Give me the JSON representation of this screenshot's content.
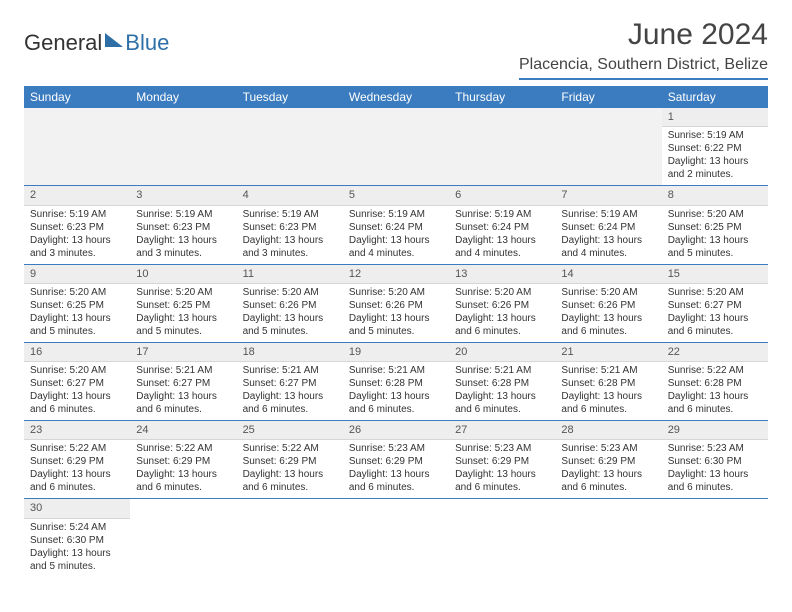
{
  "brand": {
    "part1": "General",
    "part2": "Blue"
  },
  "title": "June 2024",
  "location": "Placencia, Southern District, Belize",
  "colors": {
    "header_bg": "#3b7bbf",
    "header_text": "#ffffff",
    "daynum_bg": "#eeeeee",
    "row_border": "#3b7bbf",
    "body_text": "#333333",
    "brand_blue": "#2f6fa8"
  },
  "week_header": [
    "Sunday",
    "Monday",
    "Tuesday",
    "Wednesday",
    "Thursday",
    "Friday",
    "Saturday"
  ],
  "weeks": [
    [
      null,
      null,
      null,
      null,
      null,
      null,
      {
        "n": "1",
        "sr": "Sunrise: 5:19 AM",
        "ss": "Sunset: 6:22 PM",
        "d1": "Daylight: 13 hours",
        "d2": "and 2 minutes."
      }
    ],
    [
      {
        "n": "2",
        "sr": "Sunrise: 5:19 AM",
        "ss": "Sunset: 6:23 PM",
        "d1": "Daylight: 13 hours",
        "d2": "and 3 minutes."
      },
      {
        "n": "3",
        "sr": "Sunrise: 5:19 AM",
        "ss": "Sunset: 6:23 PM",
        "d1": "Daylight: 13 hours",
        "d2": "and 3 minutes."
      },
      {
        "n": "4",
        "sr": "Sunrise: 5:19 AM",
        "ss": "Sunset: 6:23 PM",
        "d1": "Daylight: 13 hours",
        "d2": "and 3 minutes."
      },
      {
        "n": "5",
        "sr": "Sunrise: 5:19 AM",
        "ss": "Sunset: 6:24 PM",
        "d1": "Daylight: 13 hours",
        "d2": "and 4 minutes."
      },
      {
        "n": "6",
        "sr": "Sunrise: 5:19 AM",
        "ss": "Sunset: 6:24 PM",
        "d1": "Daylight: 13 hours",
        "d2": "and 4 minutes."
      },
      {
        "n": "7",
        "sr": "Sunrise: 5:19 AM",
        "ss": "Sunset: 6:24 PM",
        "d1": "Daylight: 13 hours",
        "d2": "and 4 minutes."
      },
      {
        "n": "8",
        "sr": "Sunrise: 5:20 AM",
        "ss": "Sunset: 6:25 PM",
        "d1": "Daylight: 13 hours",
        "d2": "and 5 minutes."
      }
    ],
    [
      {
        "n": "9",
        "sr": "Sunrise: 5:20 AM",
        "ss": "Sunset: 6:25 PM",
        "d1": "Daylight: 13 hours",
        "d2": "and 5 minutes."
      },
      {
        "n": "10",
        "sr": "Sunrise: 5:20 AM",
        "ss": "Sunset: 6:25 PM",
        "d1": "Daylight: 13 hours",
        "d2": "and 5 minutes."
      },
      {
        "n": "11",
        "sr": "Sunrise: 5:20 AM",
        "ss": "Sunset: 6:26 PM",
        "d1": "Daylight: 13 hours",
        "d2": "and 5 minutes."
      },
      {
        "n": "12",
        "sr": "Sunrise: 5:20 AM",
        "ss": "Sunset: 6:26 PM",
        "d1": "Daylight: 13 hours",
        "d2": "and 5 minutes."
      },
      {
        "n": "13",
        "sr": "Sunrise: 5:20 AM",
        "ss": "Sunset: 6:26 PM",
        "d1": "Daylight: 13 hours",
        "d2": "and 6 minutes."
      },
      {
        "n": "14",
        "sr": "Sunrise: 5:20 AM",
        "ss": "Sunset: 6:26 PM",
        "d1": "Daylight: 13 hours",
        "d2": "and 6 minutes."
      },
      {
        "n": "15",
        "sr": "Sunrise: 5:20 AM",
        "ss": "Sunset: 6:27 PM",
        "d1": "Daylight: 13 hours",
        "d2": "and 6 minutes."
      }
    ],
    [
      {
        "n": "16",
        "sr": "Sunrise: 5:20 AM",
        "ss": "Sunset: 6:27 PM",
        "d1": "Daylight: 13 hours",
        "d2": "and 6 minutes."
      },
      {
        "n": "17",
        "sr": "Sunrise: 5:21 AM",
        "ss": "Sunset: 6:27 PM",
        "d1": "Daylight: 13 hours",
        "d2": "and 6 minutes."
      },
      {
        "n": "18",
        "sr": "Sunrise: 5:21 AM",
        "ss": "Sunset: 6:27 PM",
        "d1": "Daylight: 13 hours",
        "d2": "and 6 minutes."
      },
      {
        "n": "19",
        "sr": "Sunrise: 5:21 AM",
        "ss": "Sunset: 6:28 PM",
        "d1": "Daylight: 13 hours",
        "d2": "and 6 minutes."
      },
      {
        "n": "20",
        "sr": "Sunrise: 5:21 AM",
        "ss": "Sunset: 6:28 PM",
        "d1": "Daylight: 13 hours",
        "d2": "and 6 minutes."
      },
      {
        "n": "21",
        "sr": "Sunrise: 5:21 AM",
        "ss": "Sunset: 6:28 PM",
        "d1": "Daylight: 13 hours",
        "d2": "and 6 minutes."
      },
      {
        "n": "22",
        "sr": "Sunrise: 5:22 AM",
        "ss": "Sunset: 6:28 PM",
        "d1": "Daylight: 13 hours",
        "d2": "and 6 minutes."
      }
    ],
    [
      {
        "n": "23",
        "sr": "Sunrise: 5:22 AM",
        "ss": "Sunset: 6:29 PM",
        "d1": "Daylight: 13 hours",
        "d2": "and 6 minutes."
      },
      {
        "n": "24",
        "sr": "Sunrise: 5:22 AM",
        "ss": "Sunset: 6:29 PM",
        "d1": "Daylight: 13 hours",
        "d2": "and 6 minutes."
      },
      {
        "n": "25",
        "sr": "Sunrise: 5:22 AM",
        "ss": "Sunset: 6:29 PM",
        "d1": "Daylight: 13 hours",
        "d2": "and 6 minutes."
      },
      {
        "n": "26",
        "sr": "Sunrise: 5:23 AM",
        "ss": "Sunset: 6:29 PM",
        "d1": "Daylight: 13 hours",
        "d2": "and 6 minutes."
      },
      {
        "n": "27",
        "sr": "Sunrise: 5:23 AM",
        "ss": "Sunset: 6:29 PM",
        "d1": "Daylight: 13 hours",
        "d2": "and 6 minutes."
      },
      {
        "n": "28",
        "sr": "Sunrise: 5:23 AM",
        "ss": "Sunset: 6:29 PM",
        "d1": "Daylight: 13 hours",
        "d2": "and 6 minutes."
      },
      {
        "n": "29",
        "sr": "Sunrise: 5:23 AM",
        "ss": "Sunset: 6:30 PM",
        "d1": "Daylight: 13 hours",
        "d2": "and 6 minutes."
      }
    ],
    [
      {
        "n": "30",
        "sr": "Sunrise: 5:24 AM",
        "ss": "Sunset: 6:30 PM",
        "d1": "Daylight: 13 hours",
        "d2": "and 5 minutes."
      },
      null,
      null,
      null,
      null,
      null,
      null
    ]
  ]
}
